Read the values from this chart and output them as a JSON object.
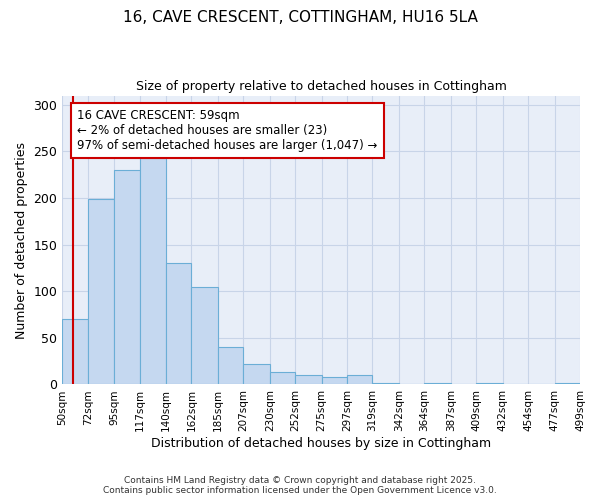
{
  "title_line1": "16, CAVE CRESCENT, COTTINGHAM, HU16 5LA",
  "title_line2": "Size of property relative to detached houses in Cottingham",
  "xlabel": "Distribution of detached houses by size in Cottingham",
  "ylabel": "Number of detached properties",
  "bin_edges": [
    50,
    72,
    95,
    117,
    140,
    162,
    185,
    207,
    230,
    252,
    275,
    297,
    319,
    342,
    364,
    387,
    409,
    432,
    454,
    477,
    499
  ],
  "heights": [
    70,
    199,
    230,
    243,
    130,
    105,
    40,
    22,
    13,
    10,
    8,
    10,
    2,
    0,
    2,
    0,
    2,
    0,
    0,
    2
  ],
  "bar_color": "#c5d8f0",
  "bar_edge_color": "#6baed6",
  "vline_x": 59,
  "vline_color": "#cc0000",
  "annotation_text": "16 CAVE CRESCENT: 59sqm\n← 2% of detached houses are smaller (23)\n97% of semi-detached houses are larger (1,047) →",
  "annotation_box_color": "#ffffff",
  "annotation_box_edge": "#cc0000",
  "ylim": [
    0,
    310
  ],
  "yticks": [
    0,
    50,
    100,
    150,
    200,
    250,
    300
  ],
  "grid_color": "#c8d4e8",
  "bg_color": "#e8eef8",
  "footer_line1": "Contains HM Land Registry data © Crown copyright and database right 2025.",
  "footer_line2": "Contains public sector information licensed under the Open Government Licence v3.0."
}
